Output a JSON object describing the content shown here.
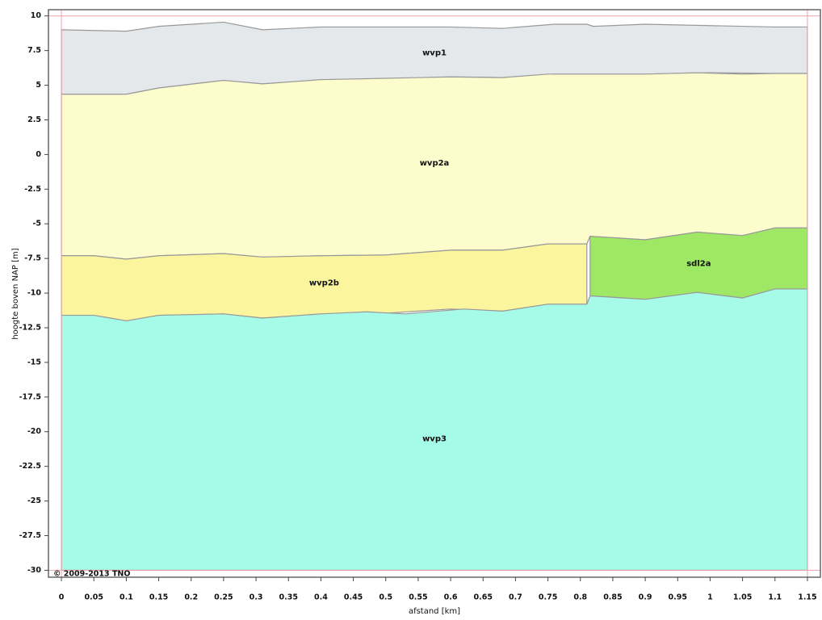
{
  "chart_data": {
    "type": "layers",
    "xlabel": "afstand [km]",
    "ylabel": "hoogte boven NAP [m]",
    "copyright": "© 2009-2013 TNO",
    "xlim": [
      -0.02,
      1.17
    ],
    "ylim": [
      -30.5,
      10.45
    ],
    "xticks": [
      0,
      0.05,
      0.1,
      0.15,
      0.2,
      0.25,
      0.3,
      0.35,
      0.4,
      0.45,
      0.5,
      0.55,
      0.6,
      0.65,
      0.7,
      0.75,
      0.8,
      0.85,
      0.9,
      0.95,
      1,
      1.05,
      1.1,
      1.15
    ],
    "yticks": [
      10,
      7.5,
      5,
      2.5,
      0,
      -2.5,
      -5,
      -7.5,
      -10,
      -12.5,
      -15,
      -17.5,
      -20,
      -22.5,
      -25,
      -27.5,
      -30
    ],
    "layers": [
      {
        "name": "wvp1",
        "color": "#e4e8ea",
        "x": [
          0,
          0.1,
          0.15,
          0.25,
          0.31,
          0.4,
          0.55,
          0.6,
          0.68,
          0.76,
          0.81,
          0.82,
          0.9,
          1,
          1.1,
          1.15
        ],
        "top": [
          9.0,
          8.9,
          9.25,
          9.55,
          9.0,
          9.2,
          9.2,
          9.2,
          9.1,
          9.4,
          9.4,
          9.25,
          9.4,
          9.3,
          9.2,
          9.2
        ],
        "bottom": [
          4.35,
          4.35,
          4.8,
          5.35,
          5.1,
          5.4,
          5.5,
          5.6,
          5.55,
          5.8,
          5.8,
          5.8,
          5.8,
          5.9,
          5.85,
          5.85
        ]
      },
      {
        "name": "wvp2a",
        "color": "#fdfccc",
        "x": [
          0,
          0.05,
          0.1,
          0.15,
          0.25,
          0.31,
          0.4,
          0.5,
          0.6,
          0.68,
          0.75,
          0.81,
          0.815,
          0.9,
          0.98,
          1.05,
          1.1,
          1.15
        ],
        "top": [
          4.35,
          4.35,
          4.35,
          4.8,
          5.35,
          5.1,
          5.4,
          5.5,
          5.6,
          5.55,
          5.8,
          5.8,
          5.8,
          5.8,
          5.9,
          5.8,
          5.85,
          5.85
        ],
        "bottom": [
          -7.3,
          -7.3,
          -7.55,
          -7.3,
          -7.15,
          -7.4,
          -7.3,
          -7.25,
          -6.9,
          -6.9,
          -6.45,
          -6.45,
          -5.9,
          -6.15,
          -5.6,
          -5.85,
          -5.3,
          -5.3
        ]
      },
      {
        "name": "wvp2b",
        "color": "#fbf59e",
        "x": [
          0,
          0.05,
          0.1,
          0.15,
          0.25,
          0.31,
          0.4,
          0.5,
          0.6,
          0.68,
          0.75,
          0.81
        ],
        "top": [
          -7.3,
          -7.3,
          -7.55,
          -7.3,
          -7.15,
          -7.4,
          -7.3,
          -7.25,
          -6.9,
          -6.9,
          -6.45,
          -6.45
        ],
        "bottom": [
          -11.6,
          -11.6,
          -12.0,
          -11.6,
          -11.5,
          -11.8,
          -11.5,
          -11.45,
          -11.15,
          -11.3,
          -10.8,
          -10.8
        ]
      },
      {
        "name": "sdl2a",
        "color": "#9fe865",
        "x": [
          0.815,
          0.9,
          0.98,
          1.05,
          1.1,
          1.15
        ],
        "top": [
          -5.9,
          -6.15,
          -5.6,
          -5.85,
          -5.3,
          -5.3
        ],
        "bottom": [
          -10.2,
          -10.45,
          -9.95,
          -10.35,
          -9.7,
          -9.7
        ]
      },
      {
        "name": "wvp3",
        "color": "#a6fbe8",
        "x": [
          0,
          0.05,
          0.1,
          0.15,
          0.25,
          0.31,
          0.4,
          0.47,
          0.53,
          0.62,
          0.68,
          0.75,
          0.81,
          0.815,
          0.9,
          0.98,
          1.05,
          1.1,
          1.15
        ],
        "top": [
          -11.6,
          -11.6,
          -12.0,
          -11.6,
          -11.5,
          -11.8,
          -11.5,
          -11.35,
          -11.5,
          -11.15,
          -11.3,
          -10.8,
          -10.8,
          -10.2,
          -10.45,
          -9.95,
          -10.35,
          -9.7,
          -9.7
        ],
        "bottom": [
          -30,
          -30,
          -30,
          -30,
          -30,
          -30,
          -30,
          -30,
          -30,
          -30,
          -30,
          -30,
          -30,
          -30,
          -30,
          -30,
          -30,
          -30,
          -30
        ]
      }
    ]
  }
}
